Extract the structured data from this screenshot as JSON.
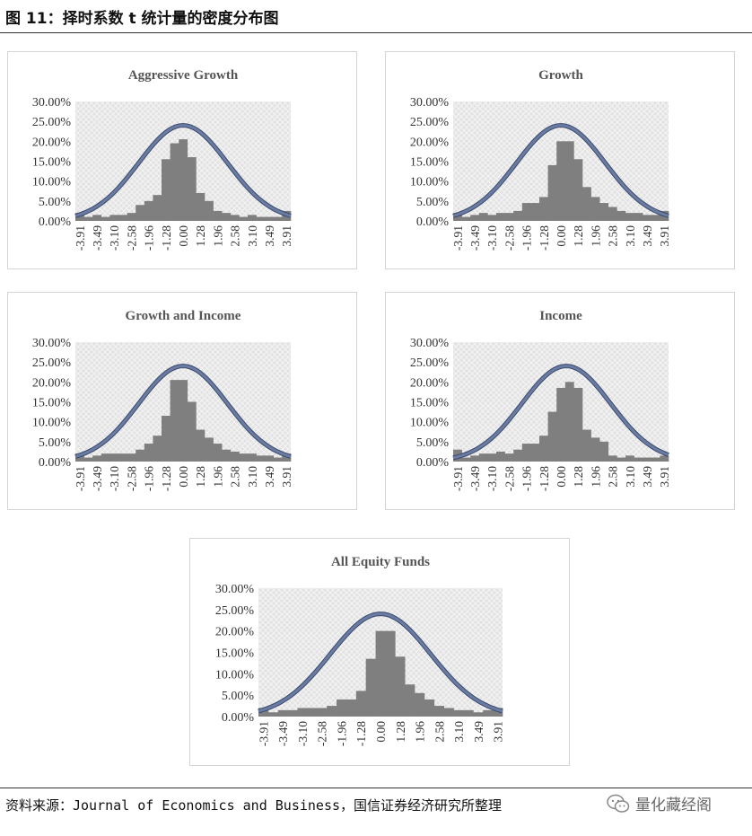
{
  "figure_title": "图 11：择时系数 t 统计量的密度分布图",
  "source_note": "资料来源：Journal of Economics and Business，国信证券经济研究所整理",
  "watermark_text": "量化藏经阁",
  "colors": {
    "bar": "#7f7f7f",
    "curve": "#6a7ca4",
    "curve_edge": "#3b4a6b",
    "plot_bg": "#e2e2e2",
    "hatch": "#f4f4f4"
  },
  "chart_data": [
    {
      "type": "bar",
      "title": "Aggressive Growth",
      "x": [
        -3.91,
        -3.7,
        -3.49,
        -3.3,
        -3.1,
        -2.84,
        -2.58,
        -2.27,
        -1.96,
        -1.62,
        -1.28,
        -0.64,
        0,
        0.64,
        1.28,
        1.62,
        1.96,
        2.27,
        2.58,
        2.84,
        3.1,
        3.3,
        3.49,
        3.7,
        3.91
      ],
      "tick_labels": [
        "-3.91",
        "-3.49",
        "-3.10",
        "-2.58",
        "-1.96",
        "-1.28",
        "0.00",
        "1.28",
        "1.96",
        "2.58",
        "3.10",
        "3.49",
        "3.91"
      ],
      "values": [
        2.0,
        1.0,
        1.5,
        1.0,
        1.5,
        1.5,
        2.0,
        4.0,
        5.0,
        6.5,
        15.5,
        19.5,
        20.5,
        16.0,
        7.0,
        5.0,
        2.5,
        2.0,
        1.5,
        1.0,
        1.5,
        1.0,
        1.0,
        1.0,
        2.5
      ],
      "curve": {
        "type": "normal",
        "mean": 0,
        "sd": 1.65,
        "peak": 24
      },
      "ylim": [
        0,
        30
      ],
      "yticks": [
        "0.00%",
        "5.00%",
        "10.00%",
        "15.00%",
        "20.00%",
        "25.00%",
        "30.00%"
      ]
    },
    {
      "type": "bar",
      "title": "Growth",
      "x": [
        -3.91,
        -3.7,
        -3.49,
        -3.3,
        -3.1,
        -2.84,
        -2.58,
        -2.27,
        -1.96,
        -1.62,
        -1.28,
        -0.64,
        0,
        0.64,
        1.28,
        1.62,
        1.96,
        2.27,
        2.58,
        2.84,
        3.1,
        3.3,
        3.49,
        3.7,
        3.91
      ],
      "tick_labels": [
        "-3.91",
        "-3.49",
        "-3.10",
        "-2.58",
        "-1.96",
        "-1.28",
        "0.00",
        "1.28",
        "1.96",
        "2.58",
        "3.10",
        "3.49",
        "3.91"
      ],
      "values": [
        2.0,
        1.0,
        1.5,
        2.0,
        1.5,
        2.0,
        2.0,
        2.5,
        4.5,
        4.5,
        6.0,
        14.0,
        20.0,
        20.0,
        15.5,
        8.5,
        6.0,
        4.5,
        3.5,
        2.5,
        2.0,
        2.0,
        1.5,
        1.5,
        2.5
      ],
      "curve": {
        "type": "normal",
        "mean": 0,
        "sd": 1.65,
        "peak": 24
      },
      "ylim": [
        0,
        30
      ],
      "yticks": [
        "0.00%",
        "5.00%",
        "10.00%",
        "15.00%",
        "20.00%",
        "25.00%",
        "30.00%"
      ]
    },
    {
      "type": "bar",
      "title": "Growth and Income",
      "x": [
        -3.91,
        -3.7,
        -3.49,
        -3.3,
        -3.1,
        -2.84,
        -2.58,
        -2.27,
        -1.96,
        -1.62,
        -1.28,
        -0.64,
        0,
        0.64,
        1.28,
        1.62,
        1.96,
        2.27,
        2.58,
        2.84,
        3.1,
        3.3,
        3.49,
        3.7,
        3.91
      ],
      "tick_labels": [
        "-3.91",
        "-3.49",
        "-3.10",
        "-2.58",
        "-1.96",
        "-1.28",
        "0.00",
        "1.28",
        "1.96",
        "2.58",
        "3.10",
        "3.49",
        "3.91"
      ],
      "values": [
        2.0,
        1.0,
        1.5,
        2.0,
        2.0,
        2.0,
        2.0,
        3.0,
        4.5,
        6.5,
        11.5,
        20.5,
        20.5,
        15.0,
        8.0,
        6.0,
        4.5,
        3.0,
        2.5,
        2.0,
        2.0,
        1.5,
        1.5,
        1.0,
        2.0
      ],
      "curve": {
        "type": "normal",
        "mean": 0,
        "sd": 1.65,
        "peak": 24
      },
      "ylim": [
        0,
        30
      ],
      "yticks": [
        "0.00%",
        "5.00%",
        "10.00%",
        "15.00%",
        "20.00%",
        "25.00%",
        "30.00%"
      ]
    },
    {
      "type": "bar",
      "title": "Income",
      "x": [
        -3.91,
        -3.7,
        -3.49,
        -3.3,
        -3.1,
        -2.84,
        -2.58,
        -2.27,
        -1.96,
        -1.62,
        -1.28,
        -0.64,
        0,
        0.64,
        1.28,
        1.62,
        1.96,
        2.27,
        2.58,
        2.84,
        3.1,
        3.3,
        3.49,
        3.7,
        3.91
      ],
      "tick_labels": [
        "-3.91",
        "-3.49",
        "-3.10",
        "-2.58",
        "-1.96",
        "-1.28",
        "0.00",
        "1.28",
        "1.96",
        "2.58",
        "3.10",
        "3.49",
        "3.91"
      ],
      "values": [
        3.0,
        1.0,
        1.5,
        2.0,
        2.0,
        2.5,
        2.0,
        3.0,
        4.5,
        4.5,
        6.5,
        12.5,
        18.5,
        20.0,
        18.5,
        8.0,
        6.0,
        5.0,
        1.5,
        1.0,
        1.5,
        1.0,
        1.0,
        1.0,
        1.5
      ],
      "curve": {
        "type": "normal",
        "mean": 0.2,
        "sd": 1.65,
        "peak": 24
      },
      "ylim": [
        0,
        30
      ],
      "yticks": [
        "0.00%",
        "5.00%",
        "10.00%",
        "15.00%",
        "20.00%",
        "25.00%",
        "30.00%"
      ]
    },
    {
      "type": "bar",
      "title": "All Equity Funds",
      "x": [
        -3.91,
        -3.7,
        -3.49,
        -3.3,
        -3.1,
        -2.84,
        -2.58,
        -2.27,
        -1.96,
        -1.62,
        -1.28,
        -0.64,
        0,
        0.64,
        1.28,
        1.62,
        1.96,
        2.27,
        2.58,
        2.84,
        3.1,
        3.3,
        3.49,
        3.7,
        3.91
      ],
      "tick_labels": [
        "-3.91",
        "-3.49",
        "-3.10",
        "-2.58",
        "-1.96",
        "-1.28",
        "0.00",
        "1.28",
        "1.96",
        "2.58",
        "3.10",
        "3.49",
        "3.91"
      ],
      "values": [
        2.0,
        1.0,
        1.5,
        1.5,
        2.0,
        2.0,
        2.0,
        2.5,
        4.0,
        4.0,
        6.0,
        13.5,
        20.0,
        20.0,
        14.0,
        7.5,
        5.5,
        4.0,
        2.5,
        2.0,
        1.5,
        1.5,
        1.0,
        1.5,
        2.0
      ],
      "curve": {
        "type": "normal",
        "mean": 0,
        "sd": 1.65,
        "peak": 24
      },
      "ylim": [
        0,
        30
      ],
      "yticks": [
        "0.00%",
        "5.00%",
        "10.00%",
        "15.00%",
        "20.00%",
        "25.00%",
        "30.00%"
      ]
    }
  ]
}
